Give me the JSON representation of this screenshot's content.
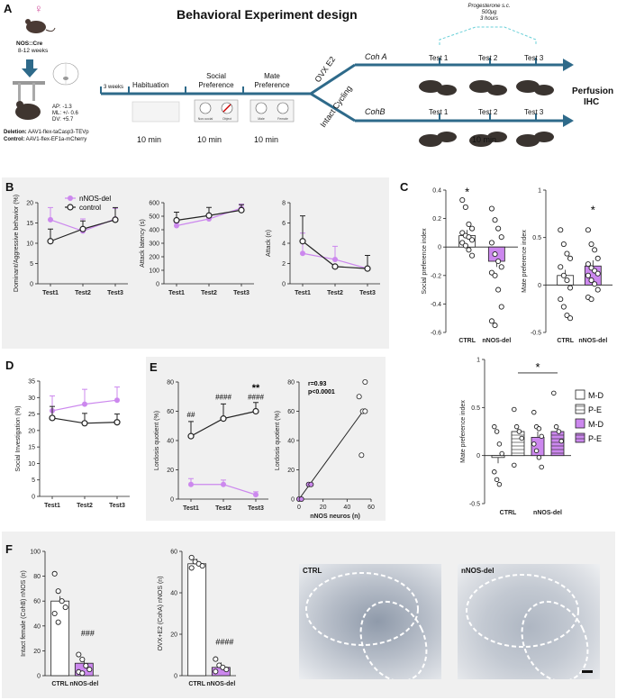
{
  "panel_letters": {
    "A": "A",
    "B": "B",
    "C": "C",
    "D": "D",
    "E": "E",
    "F": "F"
  },
  "panelA": {
    "title": "Behavioral Experiment design",
    "female_symbol": "♀",
    "mouse_line": "NOS::Cre",
    "age": "8-12 weeks",
    "coords": {
      "ap": "AP: -1.3",
      "ml": "ML: +/- 0.6",
      "dv": "DV: +5.7"
    },
    "deletion_label": "Deletion:",
    "deletion_virus": "AAV1-flex-taCasp3-TEVp",
    "control_label": "Control:",
    "control_virus": "AAV1-flex-EF1a-mCherry",
    "weeks": "3 weeks",
    "stages": [
      "Habituation",
      "Social Preference",
      "Mate Preference"
    ],
    "durations": [
      "10 min",
      "10 min",
      "10 min",
      "10 min"
    ],
    "branch_top": "OVX E2",
    "branch_bottom": "Intact Cycling",
    "coh_a": "Coh A",
    "coh_b": "CohB",
    "tests_top": [
      "Test 1",
      "Test 2",
      "Test 3"
    ],
    "tests_bottom": [
      "Test 1",
      "Test 2",
      "Test 3"
    ],
    "progesterone": [
      "Progesterone s.c.",
      "500μg",
      "3 hours"
    ],
    "perfusion": [
      "Perfusion",
      "IHC"
    ],
    "chamber_labels": [
      "Non-social",
      "Object",
      "Male",
      "Female"
    ]
  },
  "panelB": {
    "legend": [
      "nNOS-del",
      "control"
    ],
    "colors": {
      "del": "#cc88ee",
      "ctrl": "#222222"
    }
  },
  "panelC": {
    "legend": [
      "M-D",
      "P-E",
      "M-D",
      "P-E"
    ],
    "sig_star": "*"
  },
  "panelE": {
    "stats": [
      "r=0.93",
      "p<0.0001"
    ]
  },
  "panelF": {
    "images": [
      "CTRL",
      "nNOS-del"
    ]
  },
  "chart_data": [
    {
      "id": "B1",
      "type": "line",
      "x": [
        "Test1",
        "Test2",
        "Test3"
      ],
      "ylabel": "Dominant/Aggressive behavior (%)",
      "ylim": [
        0,
        20
      ],
      "yticks": [
        0,
        5,
        10,
        15,
        20
      ],
      "series": [
        {
          "name": "nNOS-del",
          "values": [
            15.8,
            13,
            16
          ]
        },
        {
          "name": "control",
          "values": [
            10.5,
            13.5,
            15.8
          ]
        }
      ],
      "errors_up": [
        [
          3,
          3,
          2.6
        ],
        [
          3,
          2,
          3
        ]
      ]
    },
    {
      "id": "B2",
      "type": "line",
      "x": [
        "Test1",
        "Test2",
        "Test3"
      ],
      "ylabel": "Attack latency (s)",
      "ylim": [
        0,
        600
      ],
      "yticks": [
        0,
        100,
        200,
        300,
        400,
        500,
        600
      ],
      "series": [
        {
          "name": "nNOS-del",
          "values": [
            430,
            480,
            560
          ]
        },
        {
          "name": "control",
          "values": [
            470,
            505,
            545
          ]
        }
      ],
      "errors_up": [
        [
          20,
          20,
          30
        ],
        [
          60,
          60,
          40
        ]
      ]
    },
    {
      "id": "B3",
      "type": "line",
      "x": [
        "Test1",
        "Test2",
        "Test3"
      ],
      "ylabel": "Attack (n)",
      "ylim": [
        0,
        8
      ],
      "yticks": [
        0,
        2,
        4,
        6,
        8
      ],
      "series": [
        {
          "name": "nNOS-del",
          "values": [
            3,
            2.4,
            1.5
          ]
        },
        {
          "name": "control",
          "values": [
            4.2,
            1.7,
            1.5
          ]
        }
      ],
      "errors_up": [
        [
          2,
          1.3,
          1.3
        ],
        [
          2.5,
          0,
          1.3
        ]
      ]
    },
    {
      "id": "C1",
      "type": "bar",
      "ylabel": "Social preference index",
      "categories": [
        "CTRL",
        "nNOS-del"
      ],
      "values": [
        0.08,
        -0.1
      ],
      "ylim": [
        -0.6,
        0.4
      ],
      "yticks": [
        -0.6,
        -0.4,
        -0.2,
        0,
        0.2,
        0.4
      ],
      "points": [
        [
          0.33,
          0.28,
          0.16,
          0.13,
          0.1,
          0.08,
          0.07,
          0.05,
          0.03,
          0.01,
          -0.02,
          -0.06
        ],
        [
          0.27,
          0.19,
          0.13,
          0.07,
          0.03,
          -0.05,
          -0.1,
          -0.14,
          -0.18,
          -0.2,
          -0.3,
          -0.42,
          -0.52,
          -0.55
        ]
      ],
      "annotation": "*"
    },
    {
      "id": "C2",
      "type": "bar",
      "ylabel": "Mate preference index",
      "categories": [
        "CTRL",
        "nNOS-del"
      ],
      "values": [
        0.1,
        0.2
      ],
      "ylim": [
        -0.5,
        1.0
      ],
      "yticks": [
        -0.5,
        0,
        0.5,
        1.0
      ],
      "points": [
        [
          0.58,
          0.43,
          0.33,
          0.28,
          0.19,
          0.1,
          0.05,
          -0.03,
          -0.15,
          -0.23,
          -0.32,
          -0.35
        ],
        [
          0.58,
          0.43,
          0.37,
          0.28,
          0.22,
          0.18,
          0.15,
          0.12,
          0.1,
          0.05,
          0.01,
          -0.05,
          -0.13,
          -0.15
        ]
      ],
      "annotation": "*"
    },
    {
      "id": "C3",
      "type": "bar",
      "ylabel": "Mate preference index",
      "categories": [
        "CTRL M-D",
        "CTRL P-E",
        "nNOS-del M-D",
        "nNOS-del P-E"
      ],
      "values": [
        -0.02,
        0.25,
        0.19,
        0.25
      ],
      "ylim": [
        -0.5,
        1.0
      ],
      "yticks": [
        -0.5,
        0,
        0.5,
        1.0
      ],
      "points": [
        [
          0.3,
          0.25,
          0.12,
          0.02,
          -0.17,
          -0.25,
          -0.3
        ],
        [
          0.48,
          0.3,
          0.25,
          0.18,
          -0.1
        ],
        [
          0.45,
          0.3,
          0.28,
          0.2,
          0.12,
          0.05,
          -0.02,
          -0.12
        ],
        [
          0.65,
          0.3,
          0.25,
          0.15
        ]
      ],
      "annotation": "*"
    },
    {
      "id": "D",
      "type": "line",
      "x": [
        "Test1",
        "Test2",
        "Test3"
      ],
      "ylabel": "Social Investigation (%)",
      "ylim": [
        0,
        35
      ],
      "yticks": [
        0,
        5,
        10,
        15,
        20,
        25,
        30,
        35
      ],
      "series": [
        {
          "name": "nNOS-del",
          "values": [
            26,
            28,
            29.2
          ]
        },
        {
          "name": "control",
          "values": [
            23.8,
            22.2,
            22.5
          ]
        }
      ],
      "errors_up": [
        [
          4.5,
          4.5,
          4
        ],
        [
          3.5,
          3,
          2.5
        ]
      ]
    },
    {
      "id": "E1",
      "type": "line",
      "x": [
        "Test1",
        "Test2",
        "Test3"
      ],
      "ylabel": "Lordosis quotient (%)",
      "ylim": [
        0,
        80
      ],
      "yticks": [
        0,
        20,
        40,
        60,
        80
      ],
      "series": [
        {
          "name": "nNOS-del",
          "values": [
            10,
            10,
            3
          ]
        },
        {
          "name": "control",
          "values": [
            43,
            55,
            60
          ]
        }
      ],
      "errors_up": [
        [
          4,
          3,
          2
        ],
        [
          10,
          10,
          6
        ]
      ],
      "annotations": [
        "##",
        "####",
        "####",
        "**"
      ]
    },
    {
      "id": "E2",
      "type": "scatter",
      "xlabel": "nNOS neuros (n)",
      "ylabel": "Lordosis quotient (%)",
      "xlim": [
        0,
        60
      ],
      "ylim": [
        0,
        80
      ],
      "xticks": [
        0,
        20,
        40,
        60
      ],
      "yticks": [
        0,
        20,
        40,
        60,
        80
      ],
      "x": [
        0,
        2,
        8,
        10,
        50,
        52,
        53,
        55,
        55
      ],
      "y": [
        0,
        0,
        10,
        10,
        70,
        30,
        60,
        80,
        60
      ],
      "fit": [
        [
          0,
          0
        ],
        [
          55,
          62
        ]
      ]
    },
    {
      "id": "F1",
      "type": "bar",
      "ylabel": "Intact female (CohB) nNOS (n)",
      "categories": [
        "CTRL",
        "nNOS-del"
      ],
      "values": [
        60,
        10
      ],
      "ylim": [
        0,
        100
      ],
      "yticks": [
        0,
        20,
        40,
        60,
        80,
        100
      ],
      "points": [
        [
          82,
          68,
          60,
          55,
          50,
          43
        ],
        [
          17,
          13,
          8,
          5,
          3,
          2
        ]
      ],
      "annotation": "###"
    },
    {
      "id": "F2",
      "type": "bar",
      "ylabel": "OVX+E2 (CohA) nNOS (n)",
      "categories": [
        "CTRL",
        "nNOS-del"
      ],
      "values": [
        54,
        4
      ],
      "ylim": [
        0,
        60
      ],
      "yticks": [
        0,
        20,
        40,
        60
      ],
      "points": [
        [
          57,
          55,
          54,
          53,
          52
        ],
        [
          8,
          5,
          4,
          3,
          2
        ]
      ],
      "annotation": "####"
    }
  ]
}
